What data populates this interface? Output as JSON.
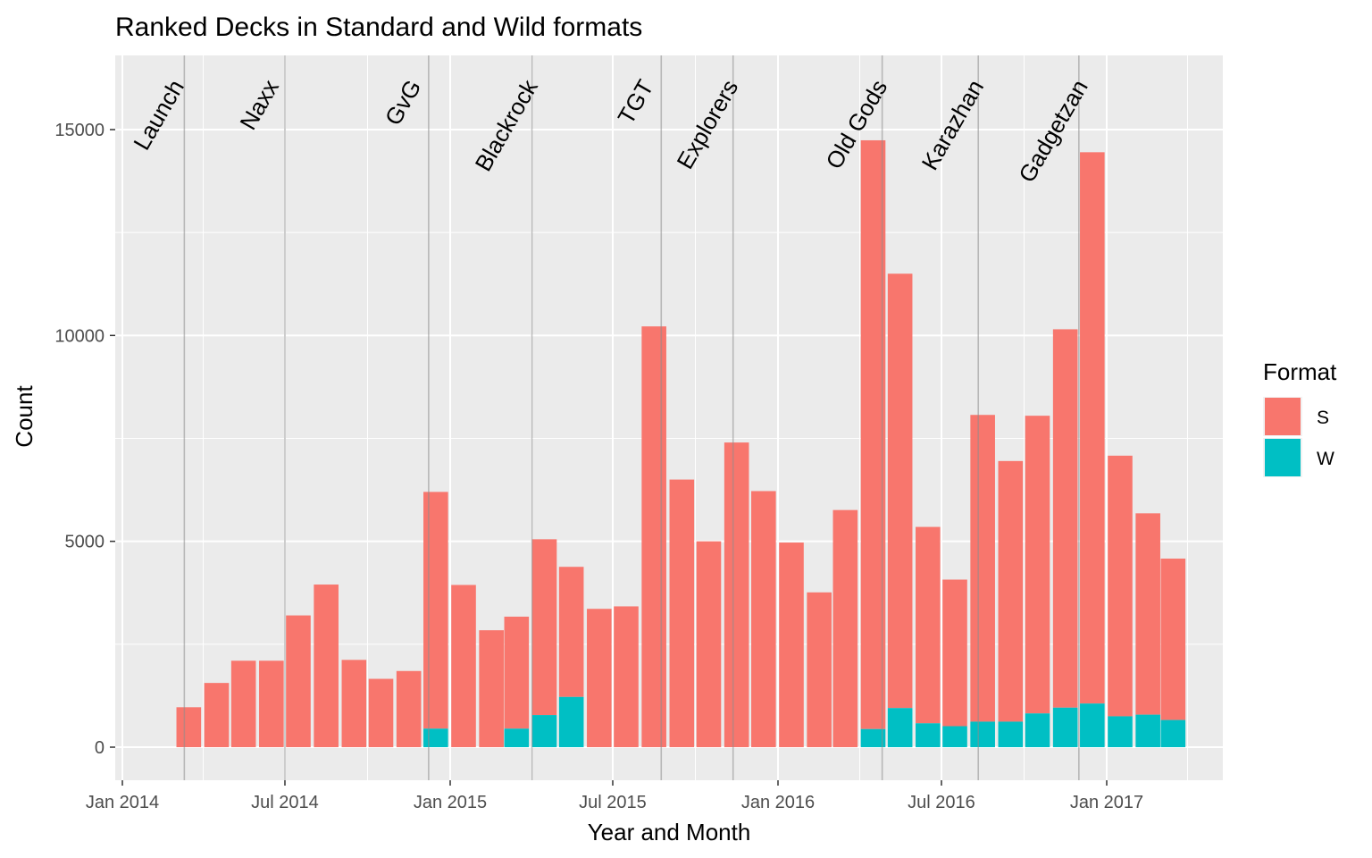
{
  "chart_data": {
    "type": "bar",
    "stacked": true,
    "title": "Ranked Decks in Standard and Wild formats",
    "xlabel": "Year and Month",
    "ylabel": "Count",
    "ylim": [
      0,
      16000
    ],
    "y_ticks": [
      0,
      5000,
      10000,
      15000
    ],
    "y_tick_labels": [
      "0",
      "5000",
      "10000",
      "15000"
    ],
    "x_range": [
      "2013-12-01",
      "2017-07-15"
    ],
    "x_ticks": [
      {
        "date": "2014-01-01",
        "label": "Jan 2014"
      },
      {
        "date": "2014-07-01",
        "label": "Jul 2014"
      },
      {
        "date": "2015-01-01",
        "label": "Jan 2015"
      },
      {
        "date": "2015-07-01",
        "label": "Jul 2015"
      },
      {
        "date": "2016-01-01",
        "label": "Jan 2016"
      },
      {
        "date": "2016-07-01",
        "label": "Jul 2016"
      },
      {
        "date": "2017-01-01",
        "label": "Jan 2017"
      }
    ],
    "months": [
      "2014-03",
      "2014-04",
      "2014-05",
      "2014-06",
      "2014-07",
      "2014-08",
      "2014-09",
      "2014-10",
      "2014-11",
      "2014-12",
      "2015-01",
      "2015-02",
      "2015-03",
      "2015-04",
      "2015-05",
      "2015-06",
      "2015-07",
      "2015-08",
      "2015-09",
      "2015-10",
      "2015-11",
      "2015-12",
      "2016-01",
      "2016-02",
      "2016-03",
      "2016-04",
      "2016-05",
      "2016-06",
      "2016-07",
      "2016-08",
      "2016-09",
      "2016-10",
      "2016-11",
      "2016-12",
      "2017-01",
      "2017-02",
      "2017-03"
    ],
    "series": [
      {
        "name": "S",
        "color": "#F8766D",
        "values": [
          970,
          1560,
          2100,
          2100,
          3200,
          3950,
          2120,
          1660,
          1850,
          5750,
          3940,
          2840,
          2720,
          4270,
          3160,
          3360,
          3420,
          10220,
          6500,
          5000,
          7400,
          6220,
          4970,
          3760,
          5760,
          14300,
          10550,
          4770,
          3560,
          7450,
          6330,
          7230,
          9190,
          13390,
          6330,
          4890,
          3920
        ]
      },
      {
        "name": "W",
        "color": "#00BFC4",
        "values": [
          0,
          0,
          0,
          0,
          0,
          0,
          0,
          0,
          0,
          450,
          0,
          0,
          450,
          780,
          1220,
          0,
          0,
          0,
          0,
          0,
          0,
          0,
          0,
          0,
          0,
          440,
          950,
          580,
          510,
          620,
          620,
          820,
          960,
          1060,
          750,
          790,
          660
        ]
      }
    ],
    "legend": {
      "title": "Format",
      "position": "right",
      "entries": [
        "S",
        "W"
      ]
    },
    "events": [
      {
        "label": "Launch",
        "date": "2014-03-11"
      },
      {
        "label": "Naxx",
        "date": "2014-07-01"
      },
      {
        "label": "GvG",
        "date": "2014-12-08"
      },
      {
        "label": "Blackrock",
        "date": "2015-04-02"
      },
      {
        "label": "TGT",
        "date": "2015-08-24"
      },
      {
        "label": "Explorers",
        "date": "2015-11-12"
      },
      {
        "label": "Old Gods",
        "date": "2016-04-26"
      },
      {
        "label": "Karazhan",
        "date": "2016-08-11"
      },
      {
        "label": "Gadgetzan",
        "date": "2016-12-01"
      }
    ],
    "grid": true
  }
}
